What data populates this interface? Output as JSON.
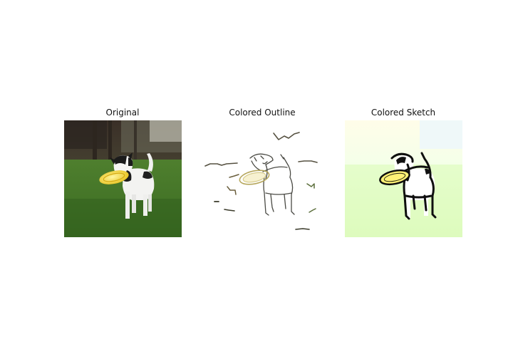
{
  "figure": {
    "panels": [
      {
        "title": "Original"
      },
      {
        "title": "Colored Outline"
      },
      {
        "title": "Colored Sketch"
      }
    ]
  }
}
